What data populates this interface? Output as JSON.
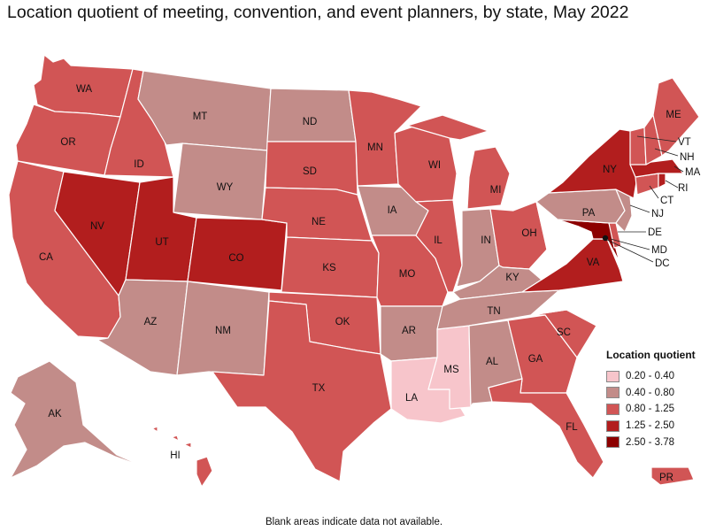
{
  "title": "Location quotient of meeting, convention, and event planners, by state, May 2022",
  "legend": {
    "title": "Location quotient",
    "items": [
      {
        "label": "0.20 - 0.40",
        "color": "#f7c5cb"
      },
      {
        "label": "0.40 - 0.80",
        "color": "#c28c89"
      },
      {
        "label": "0.80 - 1.25",
        "color": "#d15555"
      },
      {
        "label": "1.25 - 2.50",
        "color": "#b21e1e"
      },
      {
        "label": "2.50 - 3.78",
        "color": "#8c0000"
      }
    ]
  },
  "note": "Blank areas indicate data not available.",
  "colors": {
    "c1": "#f7c5cb",
    "c2": "#c28c89",
    "c3": "#d15555",
    "c4": "#b21e1e",
    "c5": "#8c0000",
    "blank": "#ffffff"
  },
  "states": {
    "WA": "WA",
    "OR": "OR",
    "CA": "CA",
    "ID": "ID",
    "NV": "NV",
    "MT": "MT",
    "WY": "WY",
    "UT": "UT",
    "CO": "CO",
    "AZ": "AZ",
    "NM": "NM",
    "ND": "ND",
    "SD": "SD",
    "NE": "NE",
    "KS": "KS",
    "OK": "OK",
    "TX": "TX",
    "MN": "MN",
    "IA": "IA",
    "MO": "MO",
    "AR": "AR",
    "LA": "LA",
    "WI": "WI",
    "IL": "IL",
    "MS": "MS",
    "MI": "MI",
    "IN": "IN",
    "KY": "KY",
    "TN": "TN",
    "AL": "AL",
    "GA": "GA",
    "FL": "FL",
    "OH": "OH",
    "SC": "SC",
    "VA": "VA",
    "PA": "PA",
    "NY": "NY",
    "ME": "ME",
    "VT": "VT",
    "NH": "NH",
    "MA": "MA",
    "RI": "RI",
    "CT": "CT",
    "NJ": "NJ",
    "DE": "DE",
    "MD": "MD",
    "DC": "DC",
    "AK": "AK",
    "HI": "HI",
    "PR": "PR"
  }
}
